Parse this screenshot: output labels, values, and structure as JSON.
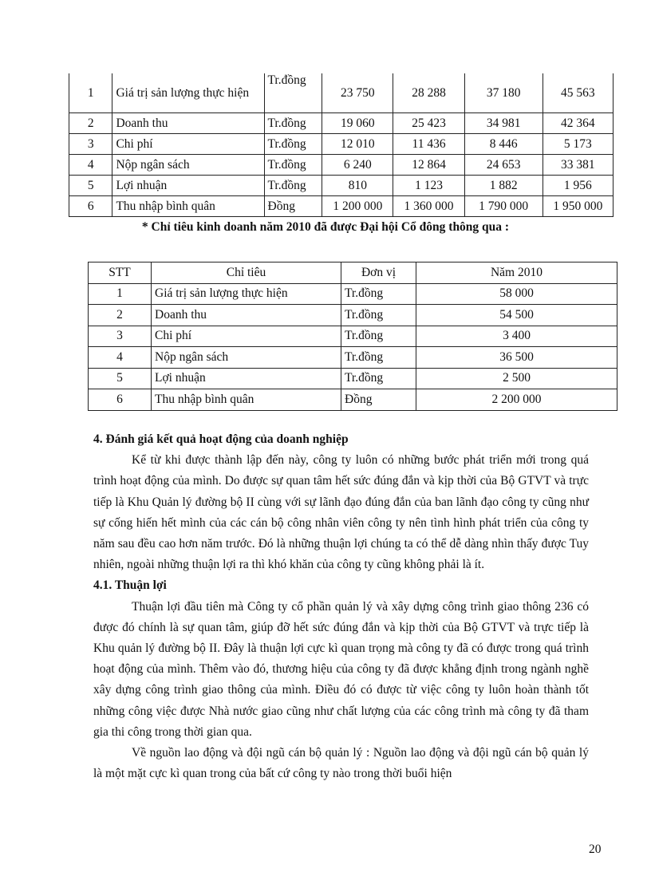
{
  "table1": {
    "rows": [
      [
        "1",
        "Giá trị sản lượng thực hiện",
        "Tr.đồng",
        "23 750",
        "28 288",
        "37 180",
        "45 563"
      ],
      [
        "2",
        "Doanh thu",
        "Tr.đồng",
        "19 060",
        "25 423",
        "34 981",
        "42 364"
      ],
      [
        "3",
        "Chi phí",
        "Tr.đồng",
        "12 010",
        "11 436",
        "8 446",
        "5 173"
      ],
      [
        "4",
        "Nộp ngân sách",
        "Tr.đồng",
        "6 240",
        "12 864",
        "24 653",
        "33 381"
      ],
      [
        "5",
        "Lợi nhuận",
        "Tr.đồng",
        "810",
        "1 123",
        "1 882",
        "1 956"
      ],
      [
        "6",
        "Thu nhập bình quân",
        "Đồng",
        "1 200 000",
        "1 360 000",
        "1 790 000",
        "1 950 000"
      ]
    ]
  },
  "caption": "* Chỉ tiêu kinh doanh năm 2010 đã được Đại hội Cổ đông thông qua :",
  "table2": {
    "headers": [
      "STT",
      "Chỉ tiêu",
      "Đơn vị",
      "Năm 2010"
    ],
    "rows": [
      [
        "1",
        "Giá trị sản lượng thực hiện",
        "Tr.đồng",
        "58 000"
      ],
      [
        "2",
        "Doanh thu",
        "Tr.đồng",
        "54 500"
      ],
      [
        "3",
        "Chi phí",
        "Tr.đồng",
        "3 400"
      ],
      [
        "4",
        "Nộp ngân sách",
        "Tr.đồng",
        "36 500"
      ],
      [
        "5",
        "Lợi nhuận",
        "Tr.đồng",
        "2 500"
      ],
      [
        "6",
        "Thu nhập bình quân",
        "Đồng",
        "2 200 000"
      ]
    ]
  },
  "section4": {
    "heading": "4. Đánh giá kết quả hoạt động của doanh nghiệp",
    "para": "Kể từ khi được thành lập đến này, công ty luôn có những bước phát triển mới trong quá trình hoạt động của mình. Do được sự quan tâm hết sức đúng đắn và kịp thời của Bộ GTVT và trực tiếp là Khu Quản lý đường bộ II cùng với sự lãnh đạo đúng đắn của ban lãnh đạo công ty cũng như sự cống hiến hết mình của các cán bộ công nhân viên công ty nên tình hình phát triển của công ty năm sau đều cao hơn năm trước. Đó là những thuận lợi chúng ta có thể dễ dàng nhìn thấy được Tuy nhiên, ngoài những thuận lợi ra thì khó khăn của công ty cũng không phải là ít."
  },
  "section41": {
    "heading": "4.1. Thuận lợi",
    "para1": "Thuận lợi đầu tiên mà Công ty cổ phần quản lý và xây dựng công trình giao thông 236 có được đó chính là sự quan tâm, giúp đỡ hết sức đúng đắn và kịp thời của Bộ GTVT và trực tiếp là Khu quản lý đường bộ II. Đây là thuận lợi cực kì quan trọng mà công ty đã có được trong quá trình hoạt động của mình. Thêm vào đó, thương hiệu của công ty đã được khẳng định trong ngành nghề xây dựng công trình giao thông của mình. Điều đó có được từ việc công ty luôn hoàn thành tốt những công việc được Nhà nước giao cũng như chất lượng của các công trình mà công ty đã tham gia thi công trong thời gian qua.",
    "para2": "Về nguồn lao động và đội ngũ cán bộ quản lý : Nguồn lao động và đội ngũ cán bộ quản lý là một mặt cực kì quan trong của bất cứ công ty nào trong thời buổi hiện"
  },
  "page_number": "20"
}
